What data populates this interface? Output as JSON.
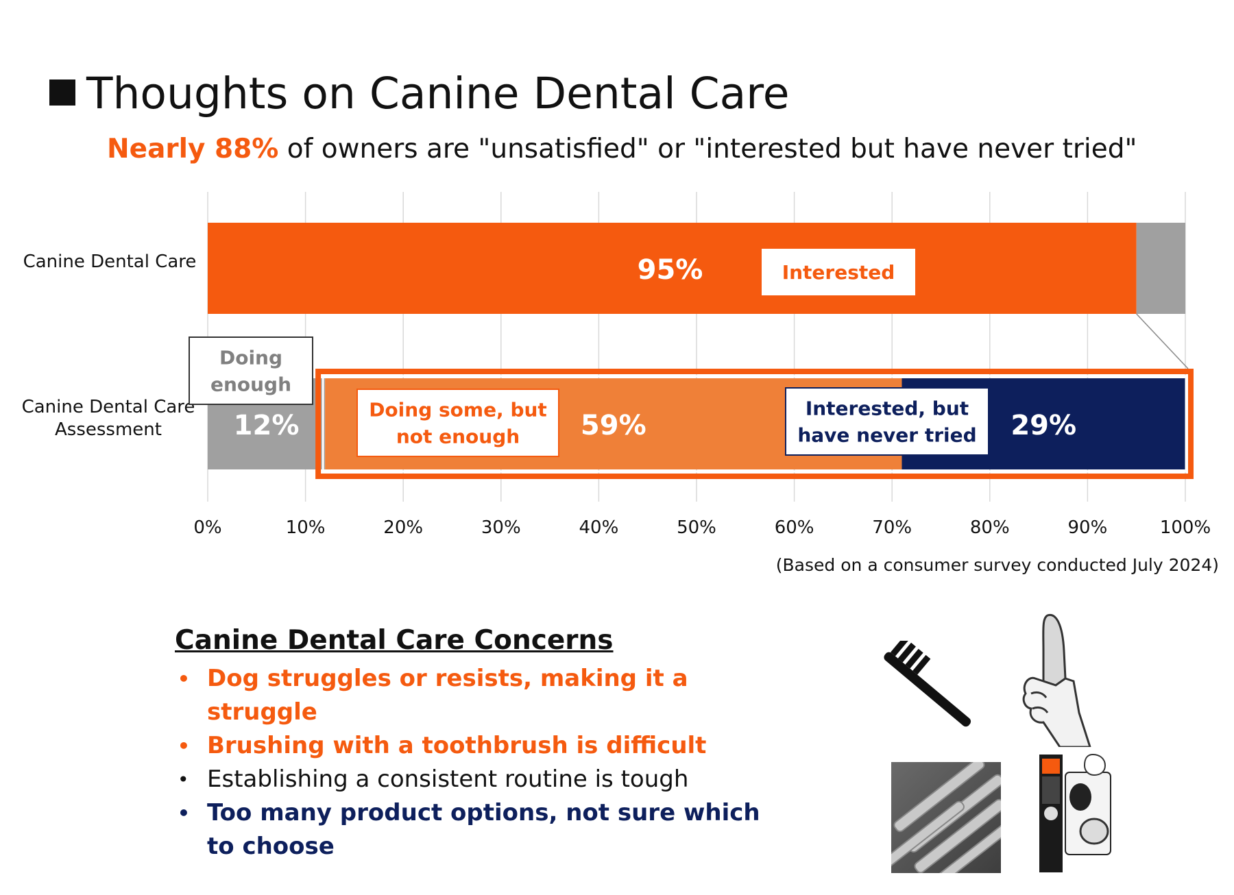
{
  "title": "Thoughts on Canine Dental Care",
  "subtitle": {
    "highlight": "Nearly 88%",
    "rest": " of owners are \"unsatisfied\" or \"interested but have never tried\""
  },
  "colors": {
    "orange": "#f55a0f",
    "light_orange": "#ef8038",
    "navy": "#0d1f5c",
    "gray": "#a0a0a0"
  },
  "chart_data": {
    "type": "bar",
    "orientation": "horizontal",
    "stacked": true,
    "categories": [
      "Canine Dental Care",
      "Canine Dental Care\nAssessment"
    ],
    "xlim": [
      0,
      100
    ],
    "xticks": [
      "0%",
      "10%",
      "20%",
      "30%",
      "40%",
      "50%",
      "60%",
      "70%",
      "80%",
      "90%",
      "100%"
    ],
    "grid": true,
    "bars": [
      {
        "category": "Canine Dental Care",
        "segments": [
          {
            "value": 95,
            "label": "95%",
            "callout": "Interested",
            "color": "#f55a0f"
          },
          {
            "value": 5,
            "label": "",
            "callout": "",
            "color": "#a0a0a0"
          }
        ]
      },
      {
        "category": "Canine Dental Care\nAssessment",
        "segments": [
          {
            "value": 12,
            "label": "12%",
            "callout": "Doing\nenough",
            "color": "#a0a0a0"
          },
          {
            "value": 59,
            "label": "59%",
            "callout": "Doing some, but\nnot enough",
            "color": "#ef8038"
          },
          {
            "value": 29,
            "label": "29%",
            "callout": "Interested, but\nhave never tried",
            "color": "#0d1f5c"
          }
        ]
      }
    ]
  },
  "note": "(Based on a consumer survey conducted July 2024)",
  "concerns": {
    "heading": "Canine Dental Care Concerns",
    "bullet": "•",
    "items": [
      {
        "text": "Dog struggles or resists, making it a struggle",
        "color": "orange"
      },
      {
        "text": "Brushing with a toothbrush is difficult",
        "color": "orange"
      },
      {
        "text": "Establishing a consistent routine is tough",
        "color": "black"
      },
      {
        "text": "Too many product options, not sure which to choose",
        "color": "navy"
      }
    ]
  },
  "illustrations": [
    "toothbrush-icon",
    "finger-wrap-icon",
    "dental-chews-photo",
    "dental-product-package-photo"
  ]
}
